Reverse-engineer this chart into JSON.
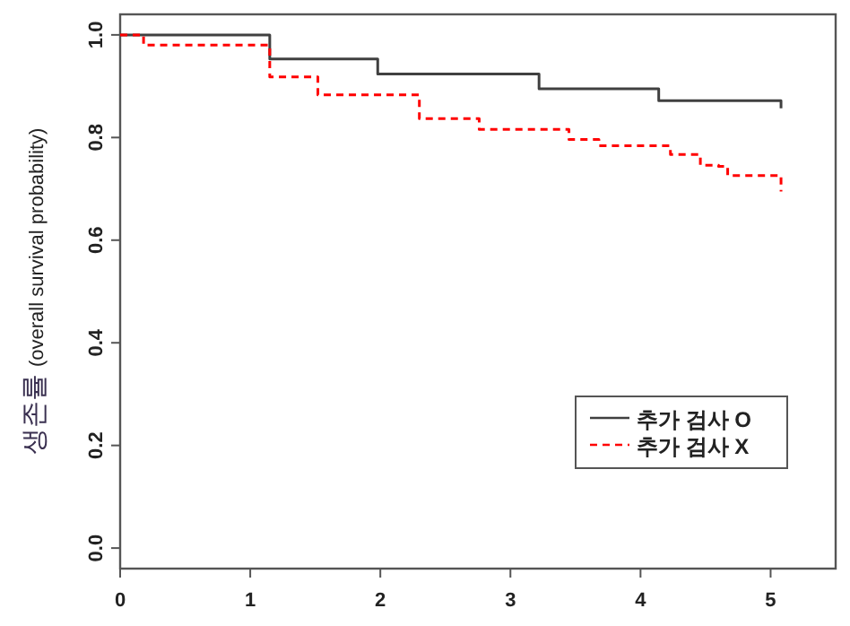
{
  "chart_data": {
    "type": "step",
    "ylabel": "생존률 (overall survival probability)",
    "xlim": [
      0,
      5.5
    ],
    "ylim": [
      -0.04,
      1.04
    ],
    "xticks": [
      0,
      1,
      2,
      3,
      4,
      5
    ],
    "yticks": [
      {
        "value": 0,
        "label": "0.0"
      },
      0.2,
      0.4,
      0.6,
      0.8,
      {
        "value": 1,
        "label": "1.0"
      }
    ],
    "grid": false,
    "legend": "right",
    "series": [
      {
        "name": "추가 검사 O",
        "color": "#404040",
        "line_style": "solid",
        "x": [
          0,
          0.18,
          1.15,
          1.98,
          3.22,
          4.14,
          5.08
        ],
        "values": [
          1.0,
          1.0,
          0.953,
          0.924,
          0.895,
          0.872,
          0.857
        ]
      },
      {
        "name": "추가 검사 X",
        "color": "#ff0000",
        "line_style": "dashed",
        "x": [
          0,
          0.18,
          1.15,
          1.52,
          2.3,
          2.76,
          3.45,
          3.68,
          4.23,
          4.46,
          4.6,
          4.67,
          5.08
        ],
        "values": [
          1.0,
          0.98,
          0.918,
          0.883,
          0.837,
          0.816,
          0.796,
          0.784,
          0.767,
          0.746,
          0.744,
          0.726,
          0.695
        ]
      }
    ]
  }
}
